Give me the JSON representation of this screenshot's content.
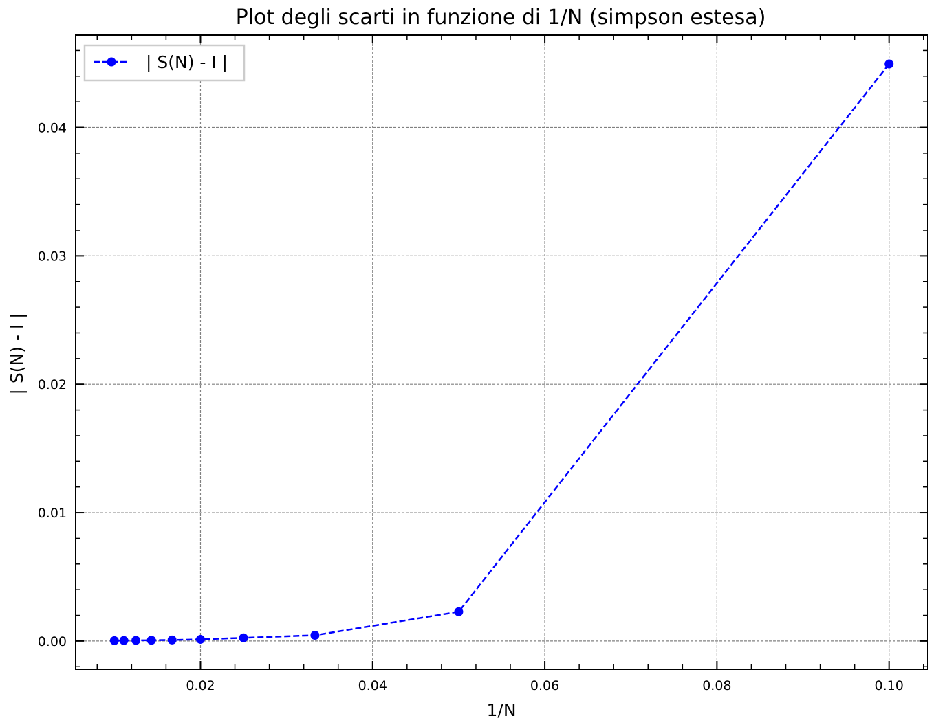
{
  "chart_data": {
    "type": "line",
    "title": "Plot degli scarti in funzione di 1/N (simpson estesa)",
    "xlabel": "1/N",
    "ylabel": "| S(N) - I |",
    "xlim": [
      0.0055,
      0.1045
    ],
    "ylim": [
      -0.0022,
      0.0472
    ],
    "xticks": [
      0.02,
      0.04,
      0.06,
      0.08,
      0.1
    ],
    "xtick_labels": [
      "0.02",
      "0.04",
      "0.06",
      "0.08",
      "0.10"
    ],
    "yticks": [
      0.0,
      0.01,
      0.02,
      0.03,
      0.04
    ],
    "ytick_labels": [
      "0.00",
      "0.01",
      "0.02",
      "0.03",
      "0.04"
    ],
    "grid": true,
    "legend_position": "top-left",
    "series": [
      {
        "name": "| S(N) - I |",
        "color": "#0000ff",
        "line_style": "dashed",
        "marker": "circle",
        "x": [
          0.01,
          0.0111,
          0.0125,
          0.0143,
          0.0167,
          0.02,
          0.025,
          0.0333,
          0.05,
          0.1
        ],
        "y": [
          3e-05,
          4e-05,
          5e-05,
          6e-05,
          8e-05,
          0.00013,
          0.00025,
          0.00045,
          0.00228,
          0.04495
        ]
      }
    ]
  }
}
